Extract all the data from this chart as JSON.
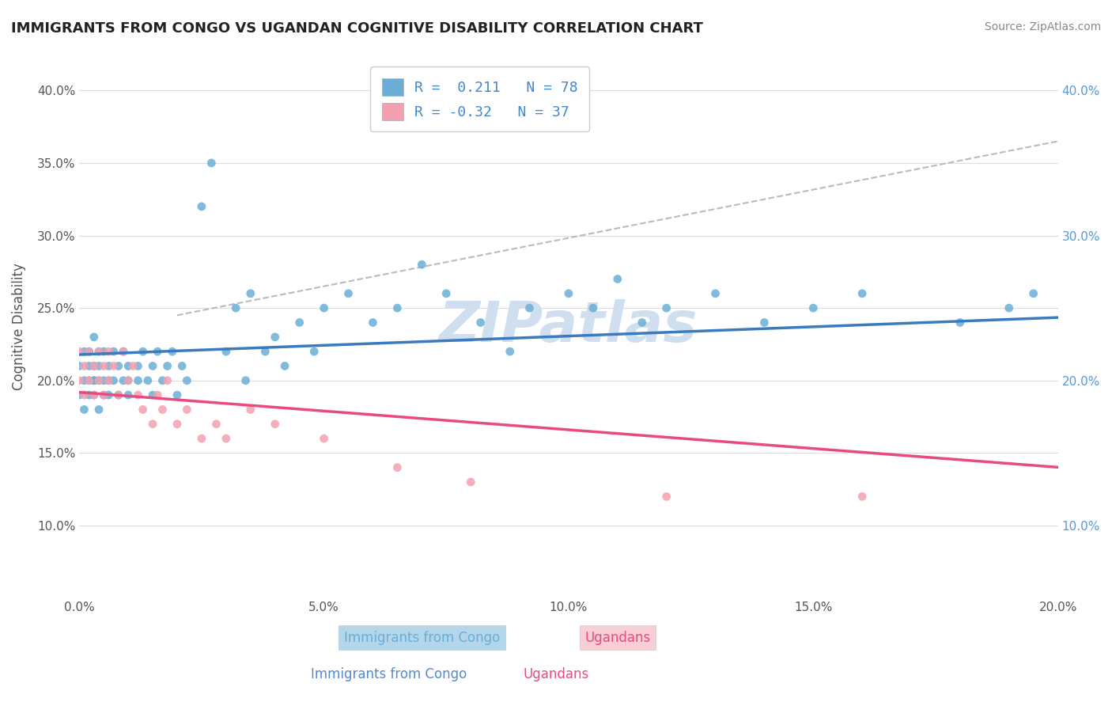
{
  "title": "IMMIGRANTS FROM CONGO VS UGANDAN COGNITIVE DISABILITY CORRELATION CHART",
  "source": "Source: ZipAtlas.com",
  "xlabel_label": "Immigrants from Congo",
  "ylabel_label": "Ugandans",
  "axis_ylabel": "Cognitive Disability",
  "xlim": [
    0.0,
    0.2
  ],
  "ylim": [
    0.05,
    0.425
  ],
  "x_ticks": [
    0.0,
    0.05,
    0.1,
    0.15,
    0.2
  ],
  "x_tick_labels": [
    "0.0%",
    "5.0%",
    "10.0%",
    "15.0%",
    "20.0%"
  ],
  "y_ticks_left": [
    0.1,
    0.15,
    0.2,
    0.25,
    0.3,
    0.35,
    0.4
  ],
  "y_tick_labels_left": [
    "10.0%",
    "15.0%",
    "20.0%",
    "25.0%",
    "30.0%",
    "35.0%",
    "40.0%"
  ],
  "y_ticks_right": [
    0.1,
    0.2,
    0.3,
    0.4
  ],
  "y_tick_labels_right": [
    "10.0%",
    "20.0%",
    "30.0%",
    "40.0%"
  ],
  "R_blue": 0.211,
  "N_blue": 78,
  "R_pink": -0.32,
  "N_pink": 37,
  "blue_color": "#6aaed6",
  "pink_color": "#f4a0b0",
  "blue_line_color": "#3a7bbf",
  "pink_line_color": "#e84c7d",
  "trendline_dashed_color": "#bbbbbb",
  "background_color": "#ffffff",
  "watermark": "ZIPatlas",
  "watermark_color": "#d0dff0",
  "blue_scatter_x": [
    0.0,
    0.0,
    0.001,
    0.001,
    0.001,
    0.002,
    0.002,
    0.002,
    0.002,
    0.003,
    0.003,
    0.003,
    0.003,
    0.003,
    0.004,
    0.004,
    0.004,
    0.004,
    0.005,
    0.005,
    0.005,
    0.006,
    0.006,
    0.006,
    0.007,
    0.007,
    0.008,
    0.008,
    0.009,
    0.009,
    0.01,
    0.01,
    0.01,
    0.012,
    0.012,
    0.013,
    0.014,
    0.015,
    0.015,
    0.016,
    0.017,
    0.018,
    0.019,
    0.02,
    0.021,
    0.022,
    0.025,
    0.027,
    0.03,
    0.032,
    0.034,
    0.035,
    0.038,
    0.04,
    0.042,
    0.045,
    0.048,
    0.05,
    0.055,
    0.06,
    0.065,
    0.07,
    0.075,
    0.082,
    0.088,
    0.092,
    0.1,
    0.105,
    0.11,
    0.115,
    0.12,
    0.13,
    0.14,
    0.15,
    0.16,
    0.18,
    0.19,
    0.195
  ],
  "blue_scatter_y": [
    0.19,
    0.21,
    0.22,
    0.18,
    0.2,
    0.2,
    0.19,
    0.22,
    0.21,
    0.2,
    0.23,
    0.19,
    0.21,
    0.2,
    0.22,
    0.18,
    0.2,
    0.21,
    0.19,
    0.2,
    0.22,
    0.21,
    0.19,
    0.2,
    0.22,
    0.2,
    0.21,
    0.19,
    0.22,
    0.2,
    0.21,
    0.2,
    0.19,
    0.21,
    0.2,
    0.22,
    0.2,
    0.21,
    0.19,
    0.22,
    0.2,
    0.21,
    0.22,
    0.19,
    0.21,
    0.2,
    0.32,
    0.35,
    0.22,
    0.25,
    0.2,
    0.26,
    0.22,
    0.23,
    0.21,
    0.24,
    0.22,
    0.25,
    0.26,
    0.24,
    0.25,
    0.28,
    0.26,
    0.24,
    0.22,
    0.25,
    0.26,
    0.25,
    0.27,
    0.24,
    0.25,
    0.26,
    0.24,
    0.25,
    0.26,
    0.24,
    0.25,
    0.26
  ],
  "pink_scatter_x": [
    0.0,
    0.0,
    0.001,
    0.001,
    0.002,
    0.002,
    0.003,
    0.003,
    0.004,
    0.004,
    0.005,
    0.005,
    0.006,
    0.006,
    0.007,
    0.008,
    0.009,
    0.01,
    0.011,
    0.012,
    0.013,
    0.015,
    0.016,
    0.017,
    0.018,
    0.02,
    0.022,
    0.025,
    0.028,
    0.03,
    0.035,
    0.04,
    0.05,
    0.065,
    0.08,
    0.12,
    0.16
  ],
  "pink_scatter_y": [
    0.22,
    0.2,
    0.21,
    0.19,
    0.22,
    0.2,
    0.21,
    0.19,
    0.22,
    0.2,
    0.21,
    0.19,
    0.22,
    0.2,
    0.21,
    0.19,
    0.22,
    0.2,
    0.21,
    0.19,
    0.18,
    0.17,
    0.19,
    0.18,
    0.2,
    0.17,
    0.18,
    0.16,
    0.17,
    0.16,
    0.18,
    0.17,
    0.16,
    0.14,
    0.13,
    0.12,
    0.12
  ]
}
